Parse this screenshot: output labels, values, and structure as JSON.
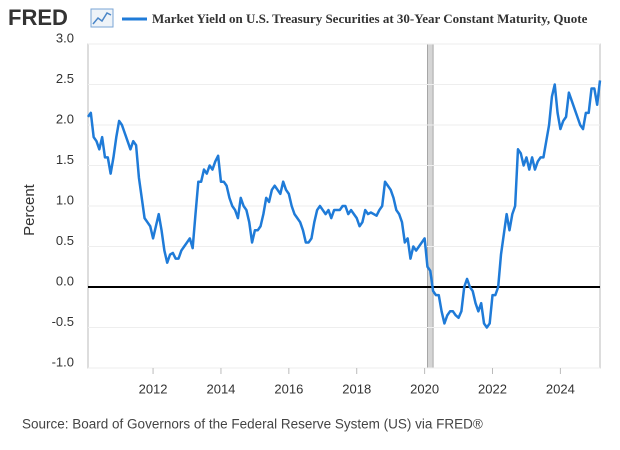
{
  "logo": "FRED",
  "source": "Source: Board of Governors of the Federal Reserve System (US) via FRED®",
  "chart_data": {
    "type": "line",
    "ylabel": "Percent",
    "grid": true,
    "xlim": [
      "2010-02",
      "2025-03"
    ],
    "xticks": [
      2012,
      2014,
      2016,
      2018,
      2020,
      2022,
      2024
    ],
    "ylim": [
      -1,
      3
    ],
    "yticks": [
      {
        "value": -1,
        "label": "-1.0"
      },
      -0.5,
      {
        "value": 0,
        "label": "0.0"
      },
      0.5,
      {
        "value": 1,
        "label": "1.0"
      },
      1.5,
      {
        "value": 2,
        "label": "2.0"
      },
      2.5,
      {
        "value": 3,
        "label": "3.0"
      }
    ],
    "recession": [
      "2020-02",
      "2020-04"
    ],
    "x": [
      "2010-02",
      "2010-03",
      "2010-04",
      "2010-05",
      "2010-06",
      "2010-07",
      "2010-08",
      "2010-09",
      "2010-10",
      "2010-11",
      "2010-12",
      "2011-01",
      "2011-02",
      "2011-03",
      "2011-04",
      "2011-05",
      "2011-06",
      "2011-07",
      "2011-08",
      "2011-09",
      "2011-10",
      "2011-11",
      "2011-12",
      "2012-01",
      "2012-02",
      "2012-03",
      "2012-04",
      "2012-05",
      "2012-06",
      "2012-07",
      "2012-08",
      "2012-09",
      "2012-10",
      "2012-11",
      "2012-12",
      "2013-01",
      "2013-02",
      "2013-03",
      "2013-04",
      "2013-05",
      "2013-06",
      "2013-07",
      "2013-08",
      "2013-09",
      "2013-10",
      "2013-11",
      "2013-12",
      "2014-01",
      "2014-02",
      "2014-03",
      "2014-04",
      "2014-05",
      "2014-06",
      "2014-07",
      "2014-08",
      "2014-09",
      "2014-10",
      "2014-11",
      "2014-12",
      "2015-01",
      "2015-02",
      "2015-03",
      "2015-04",
      "2015-05",
      "2015-06",
      "2015-07",
      "2015-08",
      "2015-09",
      "2015-10",
      "2015-11",
      "2015-12",
      "2016-01",
      "2016-02",
      "2016-03",
      "2016-04",
      "2016-05",
      "2016-06",
      "2016-07",
      "2016-08",
      "2016-09",
      "2016-10",
      "2016-11",
      "2016-12",
      "2017-01",
      "2017-02",
      "2017-03",
      "2017-04",
      "2017-05",
      "2017-06",
      "2017-07",
      "2017-08",
      "2017-09",
      "2017-10",
      "2017-11",
      "2017-12",
      "2018-01",
      "2018-02",
      "2018-03",
      "2018-04",
      "2018-05",
      "2018-06",
      "2018-07",
      "2018-08",
      "2018-09",
      "2018-10",
      "2018-11",
      "2018-12",
      "2019-01",
      "2019-02",
      "2019-03",
      "2019-04",
      "2019-05",
      "2019-06",
      "2019-07",
      "2019-08",
      "2019-09",
      "2019-10",
      "2019-11",
      "2019-12",
      "2020-01",
      "2020-02",
      "2020-03",
      "2020-04",
      "2020-05",
      "2020-06",
      "2020-07",
      "2020-08",
      "2020-09",
      "2020-10",
      "2020-11",
      "2020-12",
      "2021-01",
      "2021-02",
      "2021-03",
      "2021-04",
      "2021-05",
      "2021-06",
      "2021-07",
      "2021-08",
      "2021-09",
      "2021-10",
      "2021-11",
      "2021-12",
      "2022-01",
      "2022-02",
      "2022-03",
      "2022-04",
      "2022-05",
      "2022-06",
      "2022-07",
      "2022-08",
      "2022-09",
      "2022-10",
      "2022-11",
      "2022-12",
      "2023-01",
      "2023-02",
      "2023-03",
      "2023-04",
      "2023-05",
      "2023-06",
      "2023-07",
      "2023-08",
      "2023-09",
      "2023-10",
      "2023-11",
      "2023-12",
      "2024-01",
      "2024-02",
      "2024-03",
      "2024-04",
      "2024-05",
      "2024-06",
      "2024-07",
      "2024-08",
      "2024-09",
      "2024-10",
      "2024-11",
      "2024-12",
      "2025-01",
      "2025-02",
      "2025-03"
    ],
    "series": [
      {
        "name": "Market Yield on U.S. Treasury Securities at 30-Year Constant Maturity, Quote",
        "color": "#1f7bd8",
        "values": [
          2.1,
          2.15,
          1.85,
          1.8,
          1.7,
          1.85,
          1.6,
          1.6,
          1.4,
          1.6,
          1.85,
          2.05,
          2.0,
          1.9,
          1.8,
          1.7,
          1.8,
          1.75,
          1.35,
          1.1,
          0.85,
          0.8,
          0.75,
          0.6,
          0.75,
          0.9,
          0.7,
          0.45,
          0.3,
          0.4,
          0.42,
          0.35,
          0.35,
          0.45,
          0.5,
          0.55,
          0.6,
          0.48,
          0.9,
          1.3,
          1.3,
          1.45,
          1.4,
          1.5,
          1.45,
          1.55,
          1.62,
          1.3,
          1.3,
          1.25,
          1.1,
          1.0,
          0.95,
          0.85,
          1.1,
          1.0,
          0.95,
          0.8,
          0.55,
          0.7,
          0.7,
          0.75,
          0.9,
          1.1,
          1.05,
          1.2,
          1.25,
          1.2,
          1.15,
          1.3,
          1.2,
          1.15,
          1.0,
          0.9,
          0.85,
          0.8,
          0.7,
          0.55,
          0.55,
          0.6,
          0.8,
          0.95,
          1.0,
          0.95,
          0.9,
          0.95,
          0.85,
          0.95,
          0.95,
          0.95,
          1.0,
          1.0,
          0.9,
          0.95,
          0.9,
          0.85,
          0.75,
          0.8,
          0.95,
          0.9,
          0.92,
          0.9,
          0.88,
          0.95,
          1.0,
          1.3,
          1.25,
          1.2,
          1.1,
          0.95,
          0.9,
          0.8,
          0.55,
          0.6,
          0.35,
          0.5,
          0.45,
          0.5,
          0.55,
          0.6,
          0.25,
          0.2,
          -0.05,
          -0.1,
          -0.1,
          -0.3,
          -0.45,
          -0.35,
          -0.3,
          -0.3,
          -0.35,
          -0.38,
          -0.3,
          0.0,
          0.1,
          0.0,
          -0.05,
          -0.2,
          -0.3,
          -0.2,
          -0.45,
          -0.5,
          -0.45,
          -0.1,
          -0.1,
          0.0,
          0.4,
          0.65,
          0.9,
          0.7,
          0.9,
          1.0,
          1.7,
          1.65,
          1.5,
          1.6,
          1.45,
          1.6,
          1.45,
          1.55,
          1.6,
          1.6,
          1.8,
          2.0,
          2.35,
          2.5,
          2.15,
          1.95,
          2.05,
          2.1,
          2.4,
          2.3,
          2.2,
          2.1,
          2.0,
          1.95,
          2.15,
          2.15,
          2.45,
          2.45,
          2.25,
          2.55
        ]
      }
    ]
  }
}
